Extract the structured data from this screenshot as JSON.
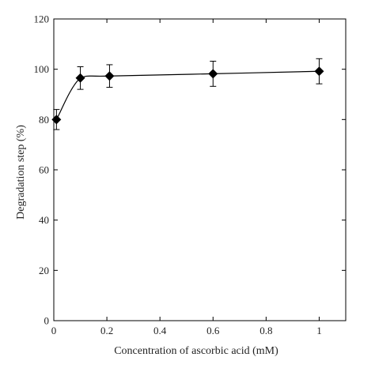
{
  "chart_data": {
    "type": "line",
    "title": "",
    "xlabel": "Concentration of ascorbic acid (mM)",
    "ylabel": "Degradation step (%)",
    "xlim": [
      0,
      1.1
    ],
    "ylim": [
      0,
      120
    ],
    "x_ticks": [
      0,
      0.2,
      0.4,
      0.6,
      0.8,
      1
    ],
    "x_tick_labels": [
      "0",
      "0.2",
      "0.4",
      "0.6",
      "0.8",
      "1"
    ],
    "y_ticks": [
      0,
      20,
      40,
      60,
      80,
      100,
      120
    ],
    "y_tick_labels": [
      "0",
      "20",
      "40",
      "60",
      "80",
      "100",
      "120"
    ],
    "grid": false,
    "legend": "none",
    "marker": "diamond",
    "line_style": "smooth",
    "colors": {
      "line": "#000000",
      "marker": "#000000",
      "axis": "#000000"
    },
    "series": [
      {
        "points": [
          {
            "x": 0.01,
            "y": 80,
            "err": 4
          },
          {
            "x": 0.1,
            "y": 96.5,
            "err": 4.5
          },
          {
            "x": 0.21,
            "y": 97.3,
            "err": 4.5
          },
          {
            "x": 0.6,
            "y": 98.2,
            "err": 5
          },
          {
            "x": 1.0,
            "y": 99.2,
            "err": 5
          }
        ]
      }
    ]
  }
}
